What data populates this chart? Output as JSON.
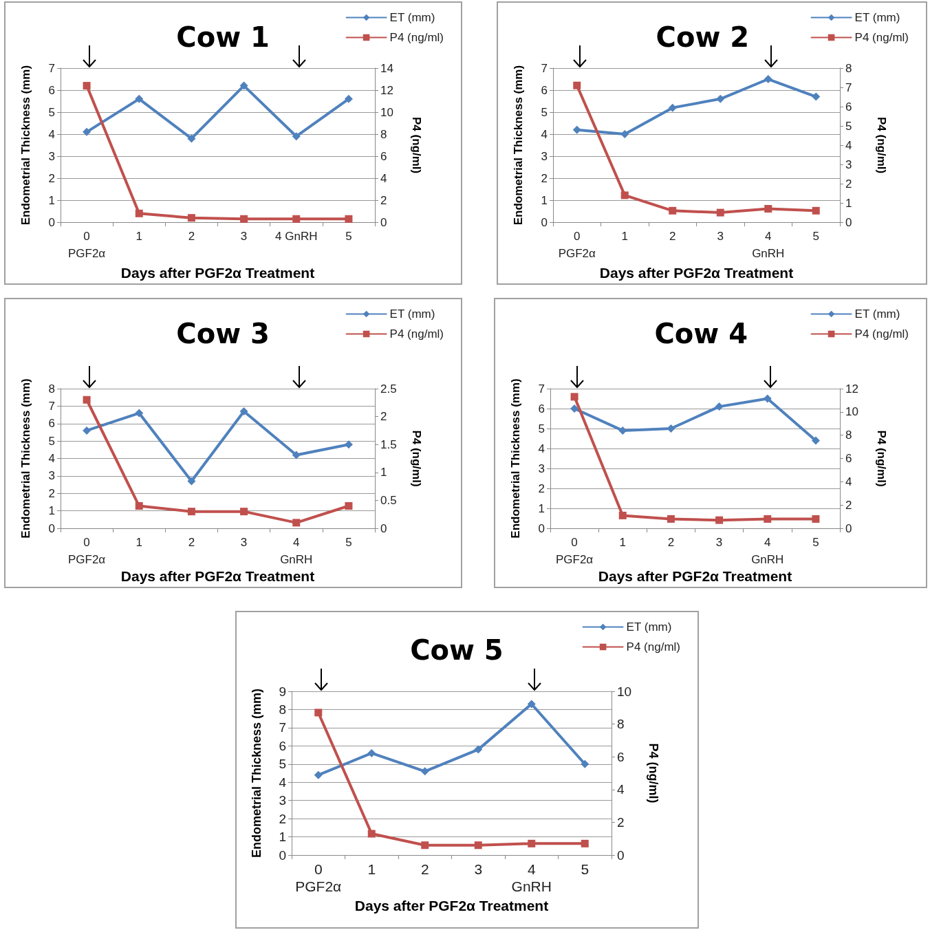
{
  "chart_data": [
    {
      "type": "line",
      "title": "Cow 1",
      "xlabel": "Days after PGF2α Treatment",
      "ylabel": "Endometrial Thickness (mm)",
      "y2label": "P4 (ng/ml)",
      "categories": [
        "0\nPGF2α",
        "1",
        "2",
        "3",
        "4 GnRH",
        "5"
      ],
      "ylim": [
        0,
        7
      ],
      "yticks": [
        0,
        1,
        2,
        3,
        4,
        5,
        6,
        7
      ],
      "y2lim": [
        0,
        14
      ],
      "y2ticks": [
        0,
        2,
        4,
        6,
        8,
        10,
        12,
        14
      ],
      "grid": "y",
      "legend": "top right",
      "series": [
        {
          "name": "ET (mm)",
          "color": "#4f81bd",
          "marker": "diamond",
          "values": [
            4.1,
            5.6,
            3.8,
            6.2,
            3.9,
            5.6
          ]
        },
        {
          "name": "P4 (ng/ml)",
          "color": "#c0504d",
          "marker": "square",
          "axis": "y2",
          "values": [
            12.4,
            0.8,
            0.4,
            0.3,
            0.3,
            0.3
          ]
        }
      ]
    },
    {
      "type": "line",
      "title": "Cow 2",
      "xlabel": "Days after PGF2α Treatment",
      "ylabel": "Endometrial Thickness (mm)",
      "y2label": "P4 (ng/ml)",
      "categories": [
        "0\nPGF2α",
        "1",
        "2",
        "3",
        "4\nGnRH",
        "5"
      ],
      "ylim": [
        0,
        7
      ],
      "yticks": [
        0,
        1,
        2,
        3,
        4,
        5,
        6,
        7
      ],
      "y2lim": [
        0,
        8
      ],
      "y2ticks": [
        0,
        1,
        2,
        3,
        4,
        5,
        6,
        7,
        8
      ],
      "grid": "y",
      "legend": "top right",
      "series": [
        {
          "name": "ET (mm)",
          "color": "#4f81bd",
          "marker": "diamond",
          "values": [
            4.2,
            4.0,
            5.2,
            5.6,
            6.5,
            5.7
          ]
        },
        {
          "name": "P4 (ng/ml)",
          "color": "#c0504d",
          "marker": "square",
          "axis": "y2",
          "values": [
            7.1,
            1.4,
            0.6,
            0.5,
            0.7,
            0.6
          ]
        }
      ]
    },
    {
      "type": "line",
      "title": "Cow 3",
      "xlabel": "Days after PGF2α Treatment",
      "ylabel": "Endometrial Thickness (mm)",
      "y2label": "P4 (ng/ml)",
      "categories": [
        "0\nPGF2α",
        "1",
        "2",
        "3",
        "4\nGnRH",
        "5"
      ],
      "ylim": [
        0,
        8
      ],
      "yticks": [
        0,
        1,
        2,
        3,
        4,
        5,
        6,
        7,
        8
      ],
      "y2lim": [
        0,
        2.5
      ],
      "y2ticks": [
        0,
        0.5,
        1,
        1.5,
        2,
        2.5
      ],
      "grid": "y",
      "legend": "top right",
      "series": [
        {
          "name": "ET (mm)",
          "color": "#4f81bd",
          "marker": "diamond",
          "values": [
            5.6,
            6.6,
            2.7,
            6.7,
            4.2,
            4.8
          ]
        },
        {
          "name": "P4 (ng/ml)",
          "color": "#c0504d",
          "marker": "square",
          "axis": "y2",
          "values": [
            2.3,
            0.4,
            0.3,
            0.3,
            0.1,
            0.4
          ]
        }
      ]
    },
    {
      "type": "line",
      "title": "Cow 4",
      "xlabel": "Days after PGF2α Treatment",
      "ylabel": "Endometrial Thickness (mm)",
      "y2label": "P4 (ng/ml)",
      "categories": [
        "0\nPGF2α",
        "1",
        "2",
        "3",
        "4\nGnRH",
        "5"
      ],
      "ylim": [
        0,
        7
      ],
      "yticks": [
        0,
        1,
        2,
        3,
        4,
        5,
        6,
        7
      ],
      "y2lim": [
        0,
        12
      ],
      "y2ticks": [
        0,
        2,
        4,
        6,
        8,
        10,
        12
      ],
      "grid": "y",
      "legend": "top right",
      "series": [
        {
          "name": "ET (mm)",
          "color": "#4f81bd",
          "marker": "diamond",
          "values": [
            6.0,
            4.9,
            5.0,
            6.1,
            6.5,
            4.4
          ]
        },
        {
          "name": "P4 (ng/ml)",
          "color": "#c0504d",
          "marker": "square",
          "axis": "y2",
          "values": [
            11.3,
            1.1,
            0.8,
            0.7,
            0.8,
            0.8
          ]
        }
      ]
    },
    {
      "type": "line",
      "title": "Cow 5",
      "xlabel": "Days after PGF2α Treatment",
      "ylabel": "Endometrial Thickness (mm)",
      "y2label": "P4 (ng/ml)",
      "categories": [
        "0\nPGF2α",
        "1",
        "2",
        "3",
        "4\nGnRH",
        "5"
      ],
      "ylim": [
        0,
        9
      ],
      "yticks": [
        0,
        1,
        2,
        3,
        4,
        5,
        6,
        7,
        8,
        9
      ],
      "y2lim": [
        0,
        10
      ],
      "y2ticks": [
        0,
        2,
        4,
        6,
        8,
        10
      ],
      "grid": "y",
      "legend": "top right",
      "series": [
        {
          "name": "ET (mm)",
          "color": "#4f81bd",
          "marker": "diamond",
          "values": [
            4.4,
            5.6,
            4.6,
            5.8,
            8.3,
            5.0
          ]
        },
        {
          "name": "P4 (ng/ml)",
          "color": "#c0504d",
          "marker": "square",
          "axis": "y2",
          "values": [
            8.7,
            1.3,
            0.6,
            0.6,
            0.7,
            0.7
          ]
        }
      ]
    }
  ]
}
